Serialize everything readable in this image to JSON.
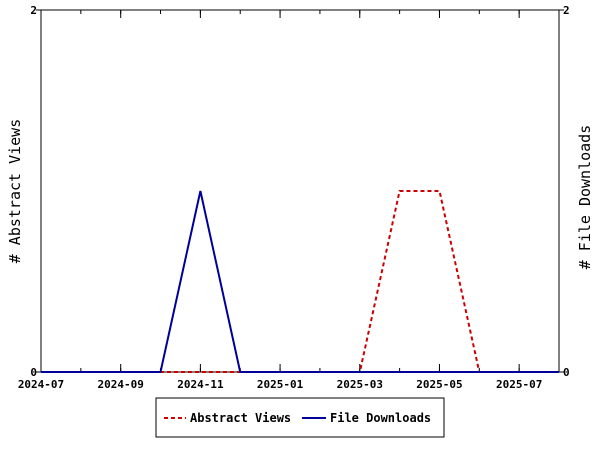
{
  "chart_data": {
    "type": "line",
    "x_axis": {
      "ticks": [
        "2024-07",
        "2024-09",
        "2024-11",
        "2025-01",
        "2025-03",
        "2025-05",
        "2025-07"
      ],
      "range": [
        "2024-07",
        "2025-08"
      ]
    },
    "y_axis_left": {
      "label": "# Abstract Views",
      "range": [
        0,
        2
      ],
      "ticks": [
        "0",
        "2"
      ]
    },
    "y_axis_right": {
      "label": "# File Downloads",
      "range": [
        0,
        2
      ],
      "ticks": [
        "0",
        "2"
      ]
    },
    "grid": false,
    "legend_position": "bottom",
    "x": [
      "2024-07",
      "2024-08",
      "2024-09",
      "2024-10",
      "2024-11",
      "2024-12",
      "2025-01",
      "2025-02",
      "2025-03",
      "2025-04",
      "2025-05",
      "2025-06",
      "2025-07",
      "2025-08"
    ],
    "series": [
      {
        "name": "Abstract Views",
        "axis": "left",
        "color": "#cc0000",
        "style": "dashed",
        "values": [
          0,
          0,
          0,
          0,
          0,
          0,
          0,
          0,
          0,
          1,
          1,
          0,
          0,
          0
        ]
      },
      {
        "name": "File Downloads",
        "axis": "right",
        "color": "#000099",
        "style": "solid",
        "values": [
          0,
          0,
          0,
          0,
          1,
          0,
          0,
          0,
          0,
          0,
          0,
          0,
          0,
          0
        ]
      }
    ]
  }
}
